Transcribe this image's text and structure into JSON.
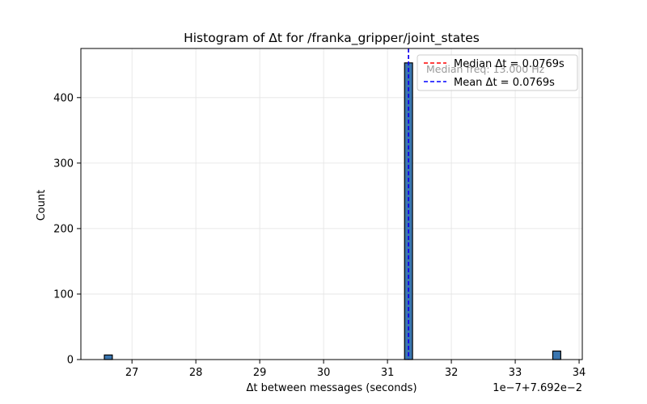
{
  "chart_data": {
    "type": "bar",
    "title": "Histogram of Δt for /franka_gripper/joint_states",
    "xlabel": "Δt between messages (seconds)",
    "ylabel": "Count",
    "offset_label": "1e−7+7.692e−2",
    "xlim": [
      26.2,
      34.05
    ],
    "ylim": [
      0,
      475
    ],
    "grid": true,
    "x_ticks": [
      27,
      28,
      29,
      30,
      31,
      32,
      33,
      34
    ],
    "y_ticks": [
      0,
      100,
      200,
      300,
      400
    ],
    "bin_width": 0.125,
    "bars": [
      {
        "x": 26.63,
        "count": 7
      },
      {
        "x": 31.33,
        "count": 453
      },
      {
        "x": 33.65,
        "count": 13
      }
    ],
    "median_line": {
      "x": 31.33,
      "label": "Median Δt = 0.0769s",
      "color": "#ff0000"
    },
    "mean_line": {
      "x": 31.33,
      "label": "Mean Δt = 0.0769s",
      "color": "#0000ff"
    },
    "annotation": "Median freq: 13.000 Hz",
    "legend_position": "top-right",
    "bar_color": "#3a76b0",
    "edge_color": "#000000"
  }
}
